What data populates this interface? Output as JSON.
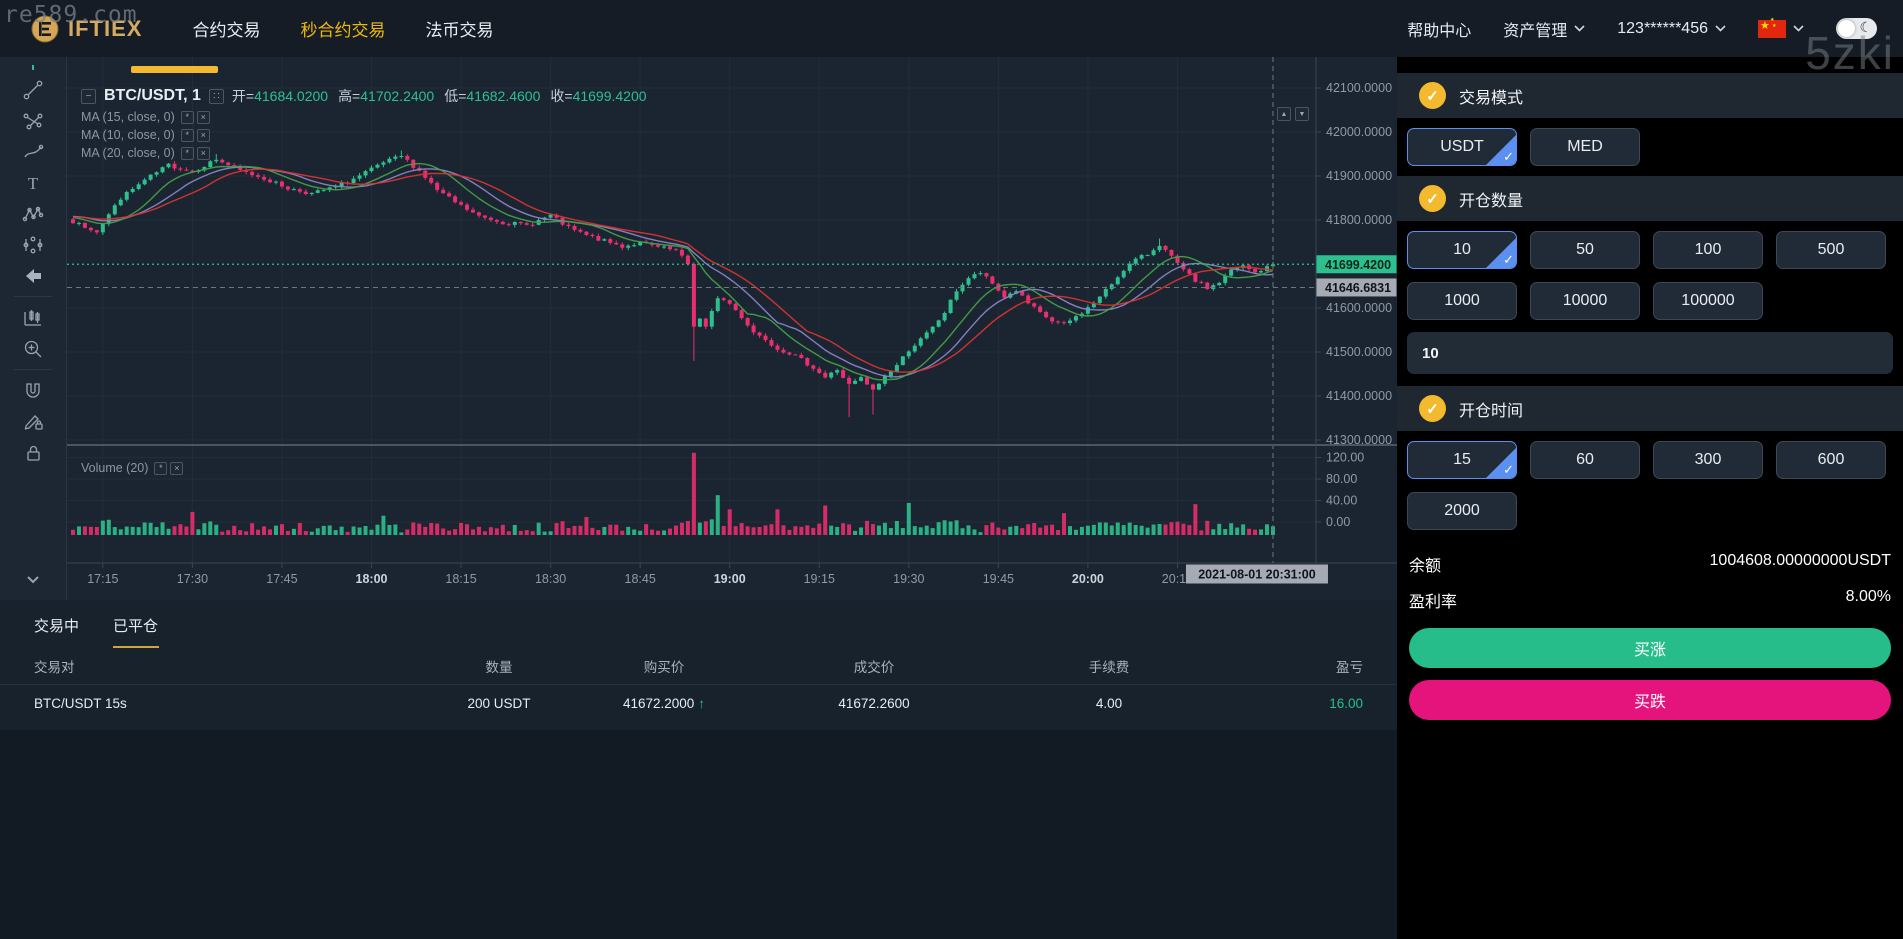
{
  "watermarks": {
    "top_left": "re589.com",
    "top_right": "5zki"
  },
  "colors": {
    "accent_gold": "#f0b90b",
    "candle_up": "#2dc08e",
    "candle_down": "#ea2e6f",
    "buy_up_green": "#26bd8b",
    "buy_down_pink": "#e5137c",
    "selected_blue": "#5b8ff0",
    "grid": "#232d39",
    "axis_text": "#8f9aa6",
    "axis_line": "#3a4552",
    "badge_gray": "#a6abb3",
    "ma15": "#8a84c8",
    "ma10": "#43a047",
    "ma20": "#d93431"
  },
  "navbar": {
    "logo_text": "IFTIEX",
    "items": [
      {
        "label": "合约交易",
        "active": false
      },
      {
        "label": "秒合约交易",
        "active": true
      },
      {
        "label": "法币交易",
        "active": false
      }
    ],
    "help": "帮助中心",
    "assets": "资产管理",
    "account": "123******456"
  },
  "chart": {
    "legend": {
      "title": "BTC/USDT, 1",
      "ohlc": [
        {
          "k": "开=",
          "v": "41684.0200"
        },
        {
          "k": "高=",
          "v": "41702.2400"
        },
        {
          "k": "低=",
          "v": "41682.4600"
        },
        {
          "k": "收=",
          "v": "41699.4200"
        }
      ]
    },
    "ma_labels": [
      "MA (15, close, 0)",
      "MA (10, close, 0)",
      "MA (20, close, 0)"
    ],
    "volume_label": "Volume (20)"
  },
  "chart_data": {
    "type": "candlestick+volume",
    "symbol": "BTC/USDT",
    "interval_minutes": 1,
    "x_start": "17:10",
    "x_end": "20:31",
    "ylim": [
      41300,
      42100
    ],
    "current_price": {
      "value": 41699.42,
      "label": "41699.4200"
    },
    "crosshair": {
      "price_value": 41646.6831,
      "price_label": "41646.6831",
      "time_label": "2021-08-01 20:31:00",
      "t": 201
    },
    "price_ticks": [
      {
        "label": "42100.0000",
        "v": 42100
      },
      {
        "label": "42000.0000",
        "v": 42000
      },
      {
        "label": "41900.0000",
        "v": 41900
      },
      {
        "label": "41800.0000",
        "v": 41800
      },
      {
        "label": "41600.0000",
        "v": 41600
      },
      {
        "label": "41500.0000",
        "v": 41500
      },
      {
        "label": "41400.0000",
        "v": 41400
      },
      {
        "label": "41300.0000",
        "v": 41300
      }
    ],
    "volume_ticks": [
      {
        "label": "120.00",
        "v": 120
      },
      {
        "label": "80.00",
        "v": 80
      },
      {
        "label": "40.00",
        "v": 40
      },
      {
        "label": "0.00",
        "v": 0
      }
    ],
    "time_ticks": [
      {
        "label": "17:15",
        "t": 5,
        "bold": false
      },
      {
        "label": "17:30",
        "t": 20,
        "bold": false
      },
      {
        "label": "17:45",
        "t": 35,
        "bold": false
      },
      {
        "label": "18:00",
        "t": 50,
        "bold": true
      },
      {
        "label": "18:15",
        "t": 65,
        "bold": false
      },
      {
        "label": "18:30",
        "t": 80,
        "bold": false
      },
      {
        "label": "18:45",
        "t": 95,
        "bold": false
      },
      {
        "label": "19:00",
        "t": 110,
        "bold": true
      },
      {
        "label": "19:15",
        "t": 125,
        "bold": false
      },
      {
        "label": "19:30",
        "t": 140,
        "bold": false
      },
      {
        "label": "19:45",
        "t": 155,
        "bold": false
      },
      {
        "label": "20:00",
        "t": 170,
        "bold": true
      },
      {
        "label": "20:15",
        "t": 185,
        "bold": false
      }
    ],
    "ma_lines": [
      {
        "period": 15,
        "color": "#8a84c8"
      },
      {
        "period": 10,
        "color": "#43a047"
      },
      {
        "period": 20,
        "color": "#d93431"
      }
    ],
    "price_anchors": [
      [
        -20,
        41790
      ],
      [
        -10,
        41820
      ],
      [
        0,
        41795
      ],
      [
        4,
        41775
      ],
      [
        8,
        41850
      ],
      [
        12,
        41890
      ],
      [
        16,
        41925
      ],
      [
        20,
        41910
      ],
      [
        24,
        41938
      ],
      [
        28,
        41912
      ],
      [
        32,
        41895
      ],
      [
        36,
        41872
      ],
      [
        40,
        41860
      ],
      [
        44,
        41875
      ],
      [
        48,
        41900
      ],
      [
        52,
        41930
      ],
      [
        55,
        41945
      ],
      [
        58,
        41912
      ],
      [
        61,
        41868
      ],
      [
        64,
        41840
      ],
      [
        68,
        41808
      ],
      [
        72,
        41795
      ],
      [
        76,
        41788
      ],
      [
        80,
        41810
      ],
      [
        83,
        41782
      ],
      [
        86,
        41765
      ],
      [
        89,
        41752
      ],
      [
        92,
        41740
      ],
      [
        95,
        41748
      ],
      [
        98,
        41738
      ],
      [
        101,
        41730
      ],
      [
        103,
        41700
      ],
      [
        104,
        41560
      ],
      [
        105,
        41575
      ],
      [
        106,
        41555
      ],
      [
        107,
        41590
      ],
      [
        108,
        41625
      ],
      [
        110,
        41610
      ],
      [
        112,
        41580
      ],
      [
        114,
        41545
      ],
      [
        116,
        41530
      ],
      [
        118,
        41508
      ],
      [
        120,
        41498
      ],
      [
        122,
        41482
      ],
      [
        124,
        41465
      ],
      [
        126,
        41442
      ],
      [
        128,
        41460
      ],
      [
        130,
        41425
      ],
      [
        132,
        41440
      ],
      [
        134,
        41412
      ],
      [
        136,
        41445
      ],
      [
        138,
        41470
      ],
      [
        140,
        41505
      ],
      [
        142,
        41528
      ],
      [
        144,
        41555
      ],
      [
        146,
        41590
      ],
      [
        148,
        41640
      ],
      [
        150,
        41668
      ],
      [
        152,
        41680
      ],
      [
        154,
        41655
      ],
      [
        156,
        41625
      ],
      [
        158,
        41640
      ],
      [
        160,
        41610
      ],
      [
        162,
        41588
      ],
      [
        164,
        41570
      ],
      [
        166,
        41562
      ],
      [
        168,
        41580
      ],
      [
        170,
        41600
      ],
      [
        172,
        41625
      ],
      [
        174,
        41655
      ],
      [
        176,
        41688
      ],
      [
        178,
        41710
      ],
      [
        180,
        41722
      ],
      [
        182,
        41745
      ],
      [
        184,
        41715
      ],
      [
        186,
        41685
      ],
      [
        188,
        41662
      ],
      [
        190,
        41645
      ],
      [
        192,
        41658
      ],
      [
        194,
        41685
      ],
      [
        196,
        41695
      ],
      [
        198,
        41680
      ],
      [
        200,
        41692
      ],
      [
        201,
        41699.42
      ]
    ],
    "wick_overrides": [
      {
        "t": 104,
        "low": 41480
      },
      {
        "t": 130,
        "low": 41352
      },
      {
        "t": 134,
        "low": 41358
      },
      {
        "t": 55,
        "high": 41958
      },
      {
        "t": 24,
        "high": 41950
      },
      {
        "t": 182,
        "high": 41758
      }
    ],
    "volume_spikes": [
      [
        104,
        128
      ],
      [
        108,
        62
      ],
      [
        110,
        40
      ],
      [
        126,
        46
      ],
      [
        140,
        50
      ],
      [
        166,
        34
      ],
      [
        188,
        48
      ],
      [
        20,
        36
      ],
      [
        52,
        30
      ],
      [
        86,
        28
      ],
      [
        118,
        40
      ]
    ]
  },
  "trade_panel": {
    "trade_mode": {
      "title": "交易模式",
      "options": [
        {
          "label": "USDT",
          "selected": true
        },
        {
          "label": "MED",
          "selected": false
        }
      ]
    },
    "amount": {
      "title": "开仓数量",
      "options": [
        {
          "label": "10",
          "selected": true
        },
        {
          "label": "50",
          "selected": false
        },
        {
          "label": "100",
          "selected": false
        },
        {
          "label": "500",
          "selected": false
        },
        {
          "label": "1000",
          "selected": false
        },
        {
          "label": "10000",
          "selected": false
        },
        {
          "label": "100000",
          "selected": false
        }
      ],
      "input_value": "10"
    },
    "duration": {
      "title": "开仓时间",
      "options": [
        {
          "label": "15",
          "selected": true
        },
        {
          "label": "60",
          "selected": false
        },
        {
          "label": "300",
          "selected": false
        },
        {
          "label": "600",
          "selected": false
        },
        {
          "label": "2000",
          "selected": false
        }
      ]
    },
    "balance": {
      "label": "余额",
      "value": "1004608.00000000USDT"
    },
    "profit_rate": {
      "label": "盈利率",
      "value": "8.00%"
    },
    "buy_up": "买涨",
    "buy_down": "买跌"
  },
  "positions": {
    "tabs": [
      {
        "label": "交易中",
        "active": false
      },
      {
        "label": "已平仓",
        "active": true
      }
    ],
    "headers": [
      "交易对",
      "数量",
      "购买价",
      "成交价",
      "手续费",
      "盈亏"
    ],
    "rows": [
      {
        "pair": "BTC/USDT 15s",
        "amount": "200 USDT",
        "buy_price": "41672.2000",
        "buy_dir": "up",
        "deal_price": "41672.2600",
        "fee": "4.00",
        "pnl": "16.00"
      }
    ]
  }
}
